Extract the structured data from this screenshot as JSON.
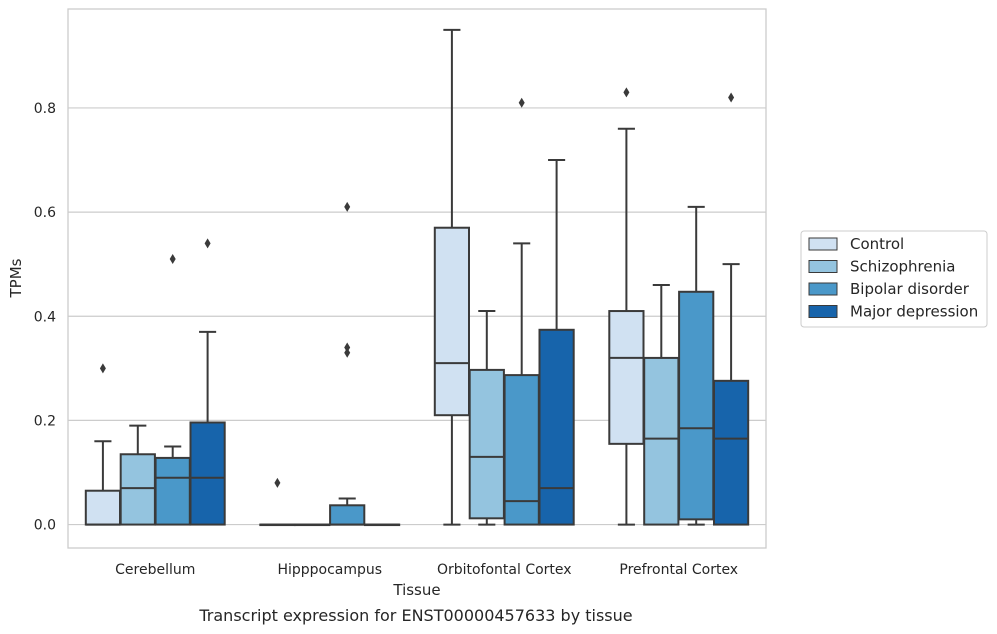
{
  "chart_data": {
    "type": "box",
    "caption": "Transcript expression for ENST00000457633 by tissue",
    "xlabel": "Tissue",
    "ylabel": "TPMs",
    "ylim": [
      -0.045,
      0.99
    ],
    "yticks": [
      0.0,
      0.2,
      0.4,
      0.6,
      0.8
    ],
    "ytick_labels": [
      "0.0",
      "0.2",
      "0.4",
      "0.6",
      "0.8"
    ],
    "grid": true,
    "legend_position": "right",
    "categories": [
      "Cerebellum",
      "Hipppocampus",
      "Orbitofontal Cortex",
      "Prefrontal Cortex"
    ],
    "series": [
      {
        "name": "Control",
        "color": "#d0e1f2",
        "boxes": [
          {
            "whislo": 0.0,
            "q1": 0.0,
            "med": 0.0,
            "q3": 0.065,
            "whishi": 0.16,
            "fliers": [
              0.3
            ]
          },
          {
            "whislo": 0.0,
            "q1": 0.0,
            "med": 0.0,
            "q3": 0.0,
            "whishi": 0.0,
            "fliers": [
              0.08
            ]
          },
          {
            "whislo": 0.0,
            "q1": 0.21,
            "med": 0.31,
            "q3": 0.57,
            "whishi": 0.95,
            "fliers": []
          },
          {
            "whislo": 0.0,
            "q1": 0.155,
            "med": 0.32,
            "q3": 0.41,
            "whishi": 0.76,
            "fliers": [
              0.83
            ]
          }
        ]
      },
      {
        "name": "Schizophrenia",
        "color": "#94c4df",
        "boxes": [
          {
            "whislo": 0.0,
            "q1": 0.0,
            "med": 0.07,
            "q3": 0.135,
            "whishi": 0.19,
            "fliers": []
          },
          {
            "whislo": 0.0,
            "q1": 0.0,
            "med": 0.0,
            "q3": 0.0,
            "whishi": 0.0,
            "fliers": []
          },
          {
            "whislo": 0.0,
            "q1": 0.012,
            "med": 0.13,
            "q3": 0.297,
            "whishi": 0.41,
            "fliers": []
          },
          {
            "whislo": 0.0,
            "q1": 0.0,
            "med": 0.165,
            "q3": 0.32,
            "whishi": 0.46,
            "fliers": []
          }
        ]
      },
      {
        "name": "Bipolar disorder",
        "color": "#4a98c9",
        "boxes": [
          {
            "whislo": 0.0,
            "q1": 0.0,
            "med": 0.09,
            "q3": 0.128,
            "whishi": 0.15,
            "fliers": [
              0.51
            ]
          },
          {
            "whislo": 0.0,
            "q1": 0.0,
            "med": 0.0,
            "q3": 0.037,
            "whishi": 0.05,
            "fliers": [
              0.33,
              0.34,
              0.61
            ]
          },
          {
            "whislo": 0.0,
            "q1": 0.0,
            "med": 0.045,
            "q3": 0.287,
            "whishi": 0.54,
            "fliers": [
              0.81
            ]
          },
          {
            "whislo": 0.0,
            "q1": 0.01,
            "med": 0.185,
            "q3": 0.447,
            "whishi": 0.61,
            "fliers": []
          }
        ]
      },
      {
        "name": "Major depression",
        "color": "#1764ab",
        "boxes": [
          {
            "whislo": 0.0,
            "q1": 0.0,
            "med": 0.09,
            "q3": 0.196,
            "whishi": 0.37,
            "fliers": [
              0.54
            ]
          },
          {
            "whislo": 0.0,
            "q1": 0.0,
            "med": 0.0,
            "q3": 0.0,
            "whishi": 0.0,
            "fliers": []
          },
          {
            "whislo": 0.0,
            "q1": 0.0,
            "med": 0.07,
            "q3": 0.374,
            "whishi": 0.7,
            "fliers": []
          },
          {
            "whislo": 0.0,
            "q1": 0.0,
            "med": 0.165,
            "q3": 0.276,
            "whishi": 0.5,
            "fliers": [
              0.82
            ]
          }
        ]
      }
    ]
  }
}
